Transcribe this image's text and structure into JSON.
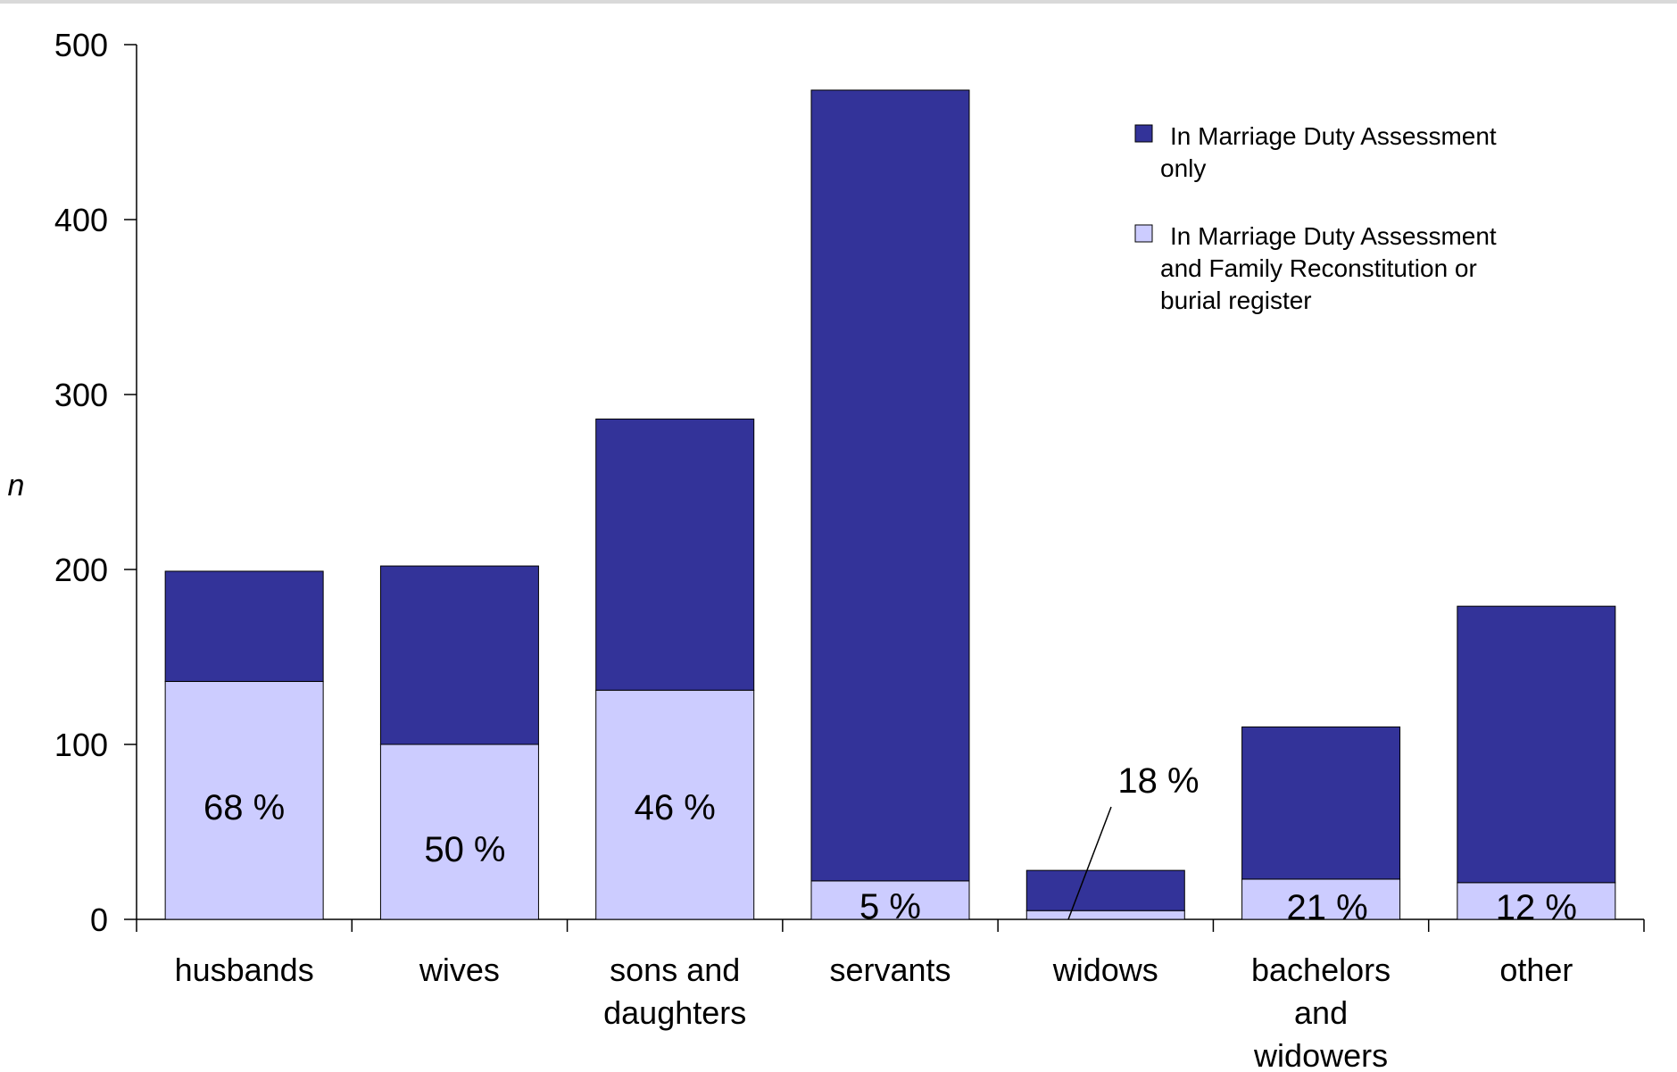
{
  "chart_data": {
    "type": "bar",
    "stacked": true,
    "ylabel": "n",
    "ylim": [
      0,
      500
    ],
    "yticks": [
      "0",
      "100",
      "200",
      "300",
      "400",
      "500"
    ],
    "categories": [
      [
        "husbands"
      ],
      [
        "wives"
      ],
      [
        "sons and",
        "daughters"
      ],
      [
        "servants"
      ],
      [
        "widows"
      ],
      [
        "bachelors",
        "and",
        "widowers"
      ],
      [
        "other"
      ]
    ],
    "series": [
      {
        "name": "In Marriage Duty Assessment and Family Reconstitution or burial register",
        "color": "#ccccff",
        "values": [
          136,
          100,
          131,
          22,
          5,
          23,
          21
        ]
      },
      {
        "name": "In Marriage Duty Assessment only",
        "color": "#333399",
        "values": [
          63,
          102,
          155,
          452,
          23,
          87,
          158
        ]
      }
    ],
    "percent_labels": [
      "68 %",
      "50 %",
      "46 %",
      "5 %",
      "18 %",
      "21 %",
      "12 %"
    ],
    "legend": [
      {
        "lines": [
          "In Marriage Duty Assessment",
          "only"
        ],
        "color": "#333399"
      },
      {
        "lines": [
          "In Marriage Duty Assessment",
          "and Family Reconstitution or",
          "burial register"
        ],
        "color": "#ccccff"
      }
    ],
    "legend_position": "top-right",
    "grid": false
  }
}
